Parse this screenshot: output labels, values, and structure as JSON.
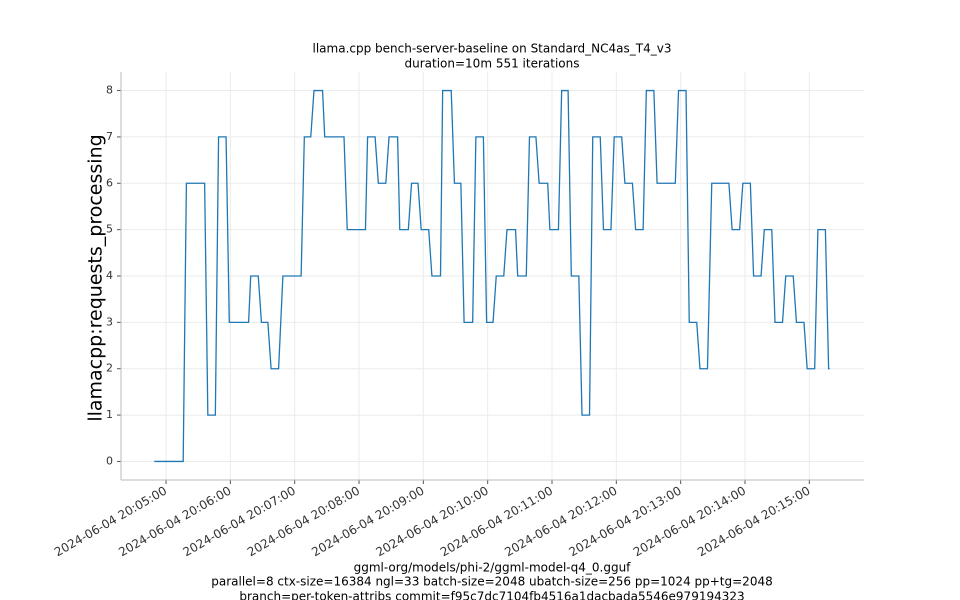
{
  "chart_data": {
    "type": "line",
    "title": "llama.cpp bench-server-baseline on Standard_NC4as_T4_v3",
    "subtitle": "duration=10m 551 iterations",
    "ylabel": "llamacpp:requests_processing",
    "xlabel": [
      "ggml-org/models/phi-2/ggml-model-q4_0.gguf",
      "parallel=8 ctx-size=16384 ngl=33 batch-size=2048 ubatch-size=256 pp=1024 pp+tg=2048",
      "branch=per-token-attribs commit=f95c7dc7104fb4516a1dacbada5546e979194323"
    ],
    "grid": true,
    "xlim": [
      "2024-06-04 20:04:18",
      "2024-06-04 20:15:51"
    ],
    "xticks": [
      "2024-06-04 20:05:00",
      "2024-06-04 20:06:00",
      "2024-06-04 20:07:00",
      "2024-06-04 20:08:00",
      "2024-06-04 20:09:00",
      "2024-06-04 20:10:00",
      "2024-06-04 20:11:00",
      "2024-06-04 20:12:00",
      "2024-06-04 20:13:00",
      "2024-06-04 20:14:00",
      "2024-06-04 20:15:00"
    ],
    "ylim": [
      -0.4,
      8.4
    ],
    "yticks": [
      0,
      1,
      2,
      3,
      4,
      5,
      6,
      7,
      8
    ],
    "x": [
      "2024-06-04 20:04:49",
      "2024-06-04 20:05:16",
      "2024-06-04 20:05:19",
      "2024-06-04 20:05:36",
      "2024-06-04 20:05:39",
      "2024-06-04 20:05:46",
      "2024-06-04 20:05:49",
      "2024-06-04 20:05:56",
      "2024-06-04 20:05:59",
      "2024-06-04 20:06:17",
      "2024-06-04 20:06:19",
      "2024-06-04 20:06:26",
      "2024-06-04 20:06:29",
      "2024-06-04 20:06:35",
      "2024-06-04 20:06:38",
      "2024-06-04 20:06:45",
      "2024-06-04 20:06:49",
      "2024-06-04 20:07:06",
      "2024-06-04 20:07:09",
      "2024-06-04 20:07:15",
      "2024-06-04 20:07:18",
      "2024-06-04 20:07:26",
      "2024-06-04 20:07:28",
      "2024-06-04 20:07:46",
      "2024-06-04 20:07:49",
      "2024-06-04 20:08:06",
      "2024-06-04 20:08:08",
      "2024-06-04 20:08:15",
      "2024-06-04 20:08:18",
      "2024-06-04 20:08:25",
      "2024-06-04 20:08:28",
      "2024-06-04 20:08:36",
      "2024-06-04 20:08:38",
      "2024-06-04 20:08:46",
      "2024-06-04 20:08:49",
      "2024-06-04 20:08:55",
      "2024-06-04 20:08:58",
      "2024-06-04 20:09:05",
      "2024-06-04 20:09:08",
      "2024-06-04 20:09:16",
      "2024-06-04 20:09:18",
      "2024-06-04 20:09:26",
      "2024-06-04 20:09:29",
      "2024-06-04 20:09:35",
      "2024-06-04 20:09:38",
      "2024-06-04 20:09:46",
      "2024-06-04 20:09:49",
      "2024-06-04 20:09:56",
      "2024-06-04 20:09:59",
      "2024-06-04 20:10:05",
      "2024-06-04 20:10:08",
      "2024-06-04 20:10:15",
      "2024-06-04 20:10:18",
      "2024-06-04 20:10:26",
      "2024-06-04 20:10:28",
      "2024-06-04 20:10:36",
      "2024-06-04 20:10:39",
      "2024-06-04 20:10:45",
      "2024-06-04 20:10:48",
      "2024-06-04 20:10:56",
      "2024-06-04 20:10:58",
      "2024-06-04 20:11:06",
      "2024-06-04 20:11:09",
      "2024-06-04 20:11:15",
      "2024-06-04 20:11:18",
      "2024-06-04 20:11:25",
      "2024-06-04 20:11:28",
      "2024-06-04 20:11:35",
      "2024-06-04 20:11:38",
      "2024-06-04 20:11:45",
      "2024-06-04 20:11:48",
      "2024-06-04 20:11:55",
      "2024-06-04 20:11:58",
      "2024-06-04 20:12:05",
      "2024-06-04 20:12:08",
      "2024-06-04 20:12:15",
      "2024-06-04 20:12:18",
      "2024-06-04 20:12:25",
      "2024-06-04 20:12:28",
      "2024-06-04 20:12:35",
      "2024-06-04 20:12:38",
      "2024-06-04 20:12:55",
      "2024-06-04 20:12:58",
      "2024-06-04 20:13:05",
      "2024-06-04 20:13:08",
      "2024-06-04 20:13:15",
      "2024-06-04 20:13:18",
      "2024-06-04 20:13:25",
      "2024-06-04 20:13:29",
      "2024-06-04 20:13:45",
      "2024-06-04 20:13:48",
      "2024-06-04 20:13:55",
      "2024-06-04 20:13:58",
      "2024-06-04 20:14:05",
      "2024-06-04 20:14:08",
      "2024-06-04 20:14:15",
      "2024-06-04 20:14:18",
      "2024-06-04 20:14:25",
      "2024-06-04 20:14:28",
      "2024-06-04 20:14:35",
      "2024-06-04 20:14:38",
      "2024-06-04 20:14:45",
      "2024-06-04 20:14:48",
      "2024-06-04 20:14:55",
      "2024-06-04 20:14:58",
      "2024-06-04 20:15:05",
      "2024-06-04 20:15:08",
      "2024-06-04 20:15:15",
      "2024-06-04 20:15:18",
      "2024-06-04 20:15:19"
    ],
    "series": [
      {
        "color": "#1f77b4",
        "values": [
          0,
          0,
          6,
          6,
          1,
          1,
          7,
          7,
          3,
          3,
          4,
          4,
          3,
          3,
          2,
          2,
          4,
          4,
          7,
          7,
          8,
          8,
          7,
          7,
          5,
          5,
          7,
          7,
          6,
          6,
          7,
          7,
          5,
          5,
          6,
          6,
          5,
          5,
          4,
          4,
          8,
          8,
          6,
          6,
          3,
          3,
          7,
          7,
          3,
          3,
          4,
          4,
          5,
          5,
          4,
          4,
          7,
          7,
          6,
          6,
          5,
          5,
          8,
          8,
          4,
          4,
          1,
          1,
          7,
          7,
          5,
          5,
          7,
          7,
          6,
          6,
          5,
          5,
          8,
          8,
          6,
          6,
          8,
          8,
          3,
          3,
          2,
          2,
          6,
          6,
          5,
          5,
          6,
          6,
          4,
          4,
          5,
          5,
          3,
          3,
          4,
          4,
          3,
          3,
          2,
          2,
          5,
          5,
          2,
          2
        ]
      }
    ]
  }
}
